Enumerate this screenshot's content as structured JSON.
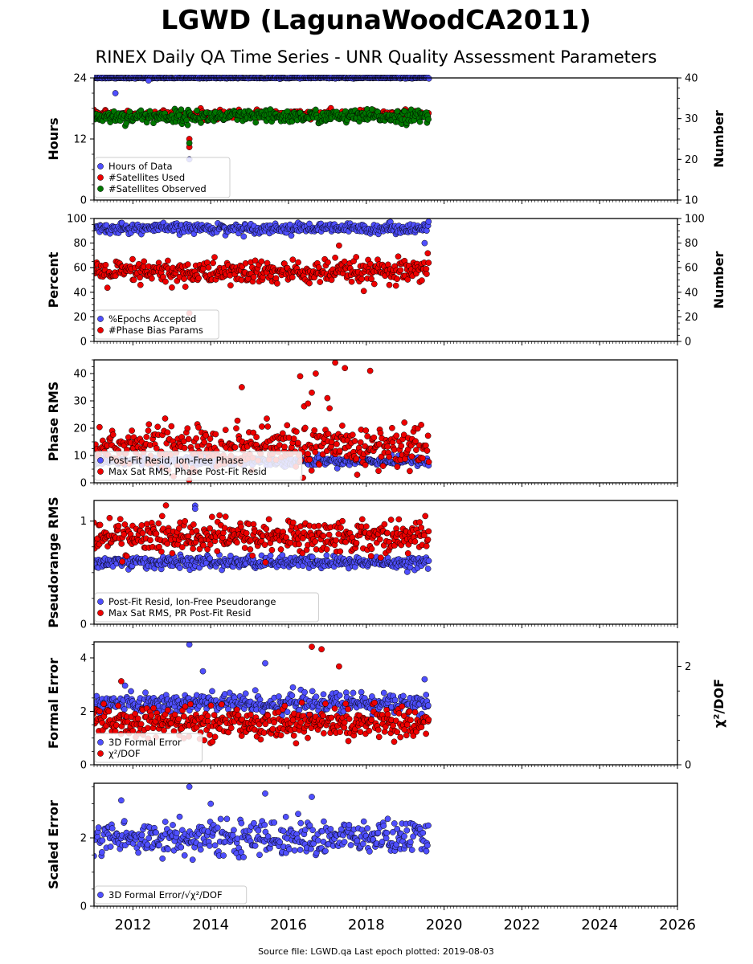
{
  "title": "LGWD (LagunaWoodCA2011)",
  "subtitle": "RINEX Daily QA Time Series - UNR Quality Assessment Parameters",
  "footer": "Source file: LGWD.qa Last epoch plotted: 2019-08-03",
  "colors": {
    "blue": "#4f4fff",
    "red": "#ee0000",
    "green": "#007700"
  },
  "chart_data": [
    {
      "type": "scatter",
      "ylabel": "Hours",
      "ylabel_right": "Number",
      "ylim": [
        0,
        24
      ],
      "ylim_right": [
        10,
        40
      ],
      "yticks": [
        0,
        12,
        24
      ],
      "yticks_right": [
        10,
        20,
        30,
        40
      ],
      "xlim": [
        2011.0,
        2026.0
      ],
      "legend_position": "lower left",
      "series": [
        {
          "name": "Hours of Data",
          "color": "blue",
          "axis": "left",
          "typical": 24,
          "spread": 0.05,
          "outliers": [
            [
              2011.55,
              21
            ],
            [
              2012.4,
              23.5
            ],
            [
              2013.45,
              8
            ]
          ]
        },
        {
          "name": "#Satellites Used",
          "color": "red",
          "axis": "right",
          "typical": 31,
          "spread": 0.5,
          "outliers": [
            [
              2013.45,
              25
            ],
            [
              2013.45,
              23
            ]
          ]
        },
        {
          "name": "#Satellites Observed",
          "color": "green",
          "axis": "right",
          "typical": 30.5,
          "spread": 0.8,
          "outliers": [
            [
              2013.45,
              24
            ]
          ]
        }
      ]
    },
    {
      "type": "scatter",
      "ylabel": "Percent",
      "ylabel_right": "Number",
      "ylim": [
        0,
        100
      ],
      "ylim_right": [
        0,
        100
      ],
      "yticks": [
        0,
        20,
        40,
        60,
        80,
        100
      ],
      "yticks_right": [
        0,
        20,
        40,
        60,
        80,
        100
      ],
      "xlim": [
        2011.0,
        2026.0
      ],
      "legend_position": "lower left",
      "series": [
        {
          "name": "%Epochs Accepted",
          "color": "blue",
          "axis": "left",
          "typical": 92,
          "spread": 2,
          "outliers": [
            [
              2019.5,
              80
            ]
          ]
        },
        {
          "name": "#Phase Bias Params",
          "color": "red",
          "axis": "right",
          "typical": 56,
          "spread": 5,
          "outliers": [
            [
              2013.45,
              23
            ],
            [
              2017.3,
              78
            ]
          ]
        }
      ]
    },
    {
      "type": "scatter",
      "ylabel": "Phase RMS",
      "ylim": [
        0,
        45
      ],
      "yticks": [
        0,
        10,
        20,
        30,
        40
      ],
      "xlim": [
        2011.0,
        2026.0
      ],
      "legend_position": "lower left",
      "series": [
        {
          "name": "Post-Fit Resid, Ion-Free Phase",
          "color": "blue",
          "axis": "left",
          "typical": 8,
          "spread": 0.8,
          "outliers": []
        },
        {
          "name": "Max Sat RMS, Phase Post-Fit Resid",
          "color": "red",
          "axis": "left",
          "typical": 13,
          "spread": 4,
          "outliers": [
            [
              2014.8,
              35
            ],
            [
              2016.3,
              39
            ],
            [
              2016.4,
              28
            ],
            [
              2016.6,
              33
            ],
            [
              2016.7,
              40
            ],
            [
              2017.0,
              31
            ],
            [
              2017.2,
              44
            ],
            [
              2017.45,
              42
            ],
            [
              2018.1,
              41
            ],
            [
              2016.5,
              29
            ]
          ]
        }
      ]
    },
    {
      "type": "scatter",
      "ylabel": "Pseudorange RMS",
      "ylim": [
        0,
        1.2
      ],
      "yticks": [
        0,
        1
      ],
      "xlim": [
        2011.0,
        2026.0
      ],
      "legend_position": "lower left",
      "series": [
        {
          "name": "Post-Fit Resid, Ion-Free Pseudorange",
          "color": "blue",
          "axis": "left",
          "typical": 0.6,
          "spread": 0.03,
          "outliers": [
            [
              2013.6,
              1.15
            ],
            [
              2013.6,
              1.12
            ]
          ]
        },
        {
          "name": "Max Sat RMS, PR Post-Fit Resid",
          "color": "red",
          "axis": "left",
          "typical": 0.85,
          "spread": 0.08,
          "outliers": []
        }
      ]
    },
    {
      "type": "scatter",
      "ylabel": "Formal Error",
      "ylabel_right": "χ²/DOF",
      "ylim": [
        0,
        4.6
      ],
      "ylim_right": [
        0,
        2.5
      ],
      "yticks": [
        0,
        2,
        4
      ],
      "yticks_right": [
        0,
        2
      ],
      "xlim": [
        2011.0,
        2026.0
      ],
      "legend_position": "lower left",
      "series": [
        {
          "name": "3D Formal Error",
          "color": "blue",
          "axis": "left",
          "typical": 2.3,
          "spread": 0.2,
          "outliers": [
            [
              2013.45,
              4.5
            ],
            [
              2013.8,
              3.5
            ],
            [
              2015.4,
              3.8
            ],
            [
              2019.5,
              3.2
            ]
          ]
        },
        {
          "name": "χ²/DOF",
          "color": "red",
          "axis": "right",
          "typical": 0.85,
          "spread": 0.15,
          "outliers": [
            [
              2016.6,
              2.4
            ],
            [
              2016.85,
              2.35
            ],
            [
              2017.3,
              2.0
            ],
            [
              2011.7,
              1.7
            ]
          ]
        }
      ]
    },
    {
      "type": "scatter",
      "ylabel": "Scaled Error",
      "ylim": [
        0,
        3.6
      ],
      "yticks": [
        0,
        2
      ],
      "xlim": [
        2011.0,
        2026.0
      ],
      "legend_position": "lower left",
      "series": [
        {
          "name": "3D Formal Error/√χ²/DOF",
          "color": "blue",
          "axis": "left",
          "typical": 2.0,
          "spread": 0.25,
          "outliers": [
            [
              2013.45,
              3.5
            ],
            [
              2015.4,
              3.3
            ],
            [
              2016.6,
              3.2
            ],
            [
              2011.7,
              3.1
            ],
            [
              2014.0,
              3.0
            ]
          ]
        }
      ]
    }
  ],
  "x_ticks": [
    "2012",
    "2014",
    "2016",
    "2018",
    "2020",
    "2022",
    "2024",
    "2026"
  ],
  "x_tick_values": [
    2012,
    2014,
    2016,
    2018,
    2020,
    2022,
    2024,
    2026
  ],
  "data_range": [
    2011.0,
    2019.6
  ]
}
